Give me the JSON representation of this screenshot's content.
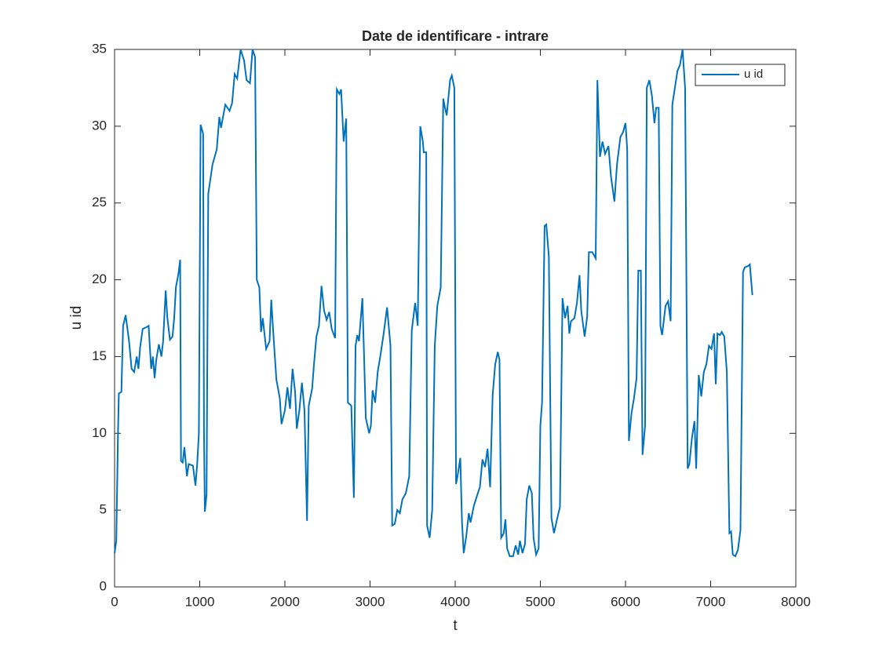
{
  "chart_data": {
    "type": "line",
    "title": "Date de identificare - intrare",
    "xlabel": "t",
    "ylabel": "u id",
    "xlim": [
      0,
      8000
    ],
    "ylim": [
      0,
      35
    ],
    "xticks": [
      0,
      1000,
      2000,
      3000,
      4000,
      5000,
      6000,
      7000,
      8000
    ],
    "yticks": [
      0,
      5,
      10,
      15,
      20,
      25,
      30,
      35
    ],
    "grid": false,
    "legend": "upper right",
    "x": [
      0,
      20,
      40,
      50,
      80,
      100,
      130,
      170,
      200,
      230,
      260,
      280,
      300,
      330,
      370,
      400,
      410,
      430,
      450,
      470,
      490,
      520,
      550,
      570,
      600,
      620,
      650,
      680,
      700,
      720,
      750,
      770,
      780,
      800,
      820,
      850,
      870,
      920,
      950,
      970,
      990,
      1010,
      1040,
      1050,
      1060,
      1080,
      1100,
      1150,
      1200,
      1230,
      1250,
      1300,
      1350,
      1380,
      1410,
      1440,
      1480,
      1520,
      1550,
      1590,
      1620,
      1650,
      1670,
      1700,
      1720,
      1740,
      1780,
      1820,
      1840,
      1870,
      1900,
      1940,
      1960,
      2000,
      2030,
      2060,
      2090,
      2120,
      2140,
      2170,
      2200,
      2230,
      2260,
      2280,
      2320,
      2340,
      2370,
      2400,
      2430,
      2460,
      2490,
      2520,
      2550,
      2590,
      2610,
      2640,
      2660,
      2690,
      2720,
      2740,
      2780,
      2810,
      2830,
      2850,
      2870,
      2910,
      2930,
      2950,
      2990,
      3010,
      3030,
      3060,
      3090,
      3120,
      3160,
      3200,
      3240,
      3260,
      3290,
      3320,
      3350,
      3380,
      3420,
      3460,
      3490,
      3530,
      3560,
      3590,
      3620,
      3630,
      3660,
      3670,
      3700,
      3730,
      3760,
      3790,
      3830,
      3860,
      3880,
      3900,
      3940,
      3960,
      3990,
      4010,
      4030,
      4060,
      4080,
      4100,
      4130,
      4160,
      4180,
      4220,
      4260,
      4290,
      4320,
      4350,
      4380,
      4410,
      4440,
      4470,
      4500,
      4520,
      4540,
      4570,
      4590,
      4610,
      4640,
      4680,
      4710,
      4740,
      4760,
      4790,
      4820,
      4840,
      4870,
      4900,
      4920,
      4950,
      4980,
      5000,
      5020,
      5050,
      5070,
      5100,
      5130,
      5160,
      5200,
      5230,
      5260,
      5290,
      5320,
      5340,
      5360,
      5400,
      5430,
      5460,
      5480,
      5520,
      5550,
      5570,
      5610,
      5650,
      5670,
      5700,
      5730,
      5760,
      5800,
      5830,
      5870,
      5900,
      5940,
      5970,
      6000,
      6020,
      6040,
      6070,
      6100,
      6130,
      6150,
      6180,
      6200,
      6230,
      6250,
      6280,
      6310,
      6340,
      6360,
      6390,
      6410,
      6430,
      6470,
      6500,
      6530,
      6550,
      6580,
      6610,
      6640,
      6670,
      6700,
      6730,
      6750,
      6780,
      6810,
      6830,
      6860,
      6890,
      6920,
      6950,
      6980,
      7010,
      7040,
      7060,
      7080,
      7110,
      7130,
      7160,
      7190,
      7220,
      7240,
      7260,
      7290,
      7320,
      7350,
      7380,
      7400,
      7440,
      7460,
      7490
    ],
    "series": [
      {
        "name": "u id",
        "color": "#0072bd",
        "values": [
          2.2,
          3,
          10,
          12.6,
          12.7,
          17,
          17.7,
          16,
          14.2,
          14,
          15,
          14.2,
          15.6,
          16.8,
          16.9,
          17,
          16,
          14.2,
          15,
          13.6,
          14.8,
          15.8,
          15,
          16,
          19.3,
          17.5,
          16.1,
          16.3,
          17.5,
          19.5,
          20.4,
          21.3,
          8.2,
          8.1,
          9.1,
          7.2,
          8,
          7.9,
          6.6,
          8,
          10,
          30.1,
          29.5,
          10,
          4.9,
          6,
          25.6,
          27.5,
          28.5,
          30.6,
          29.9,
          31.4,
          31,
          31.5,
          33.4,
          33.1,
          35,
          34.3,
          33,
          32.8,
          35,
          34.5,
          20,
          19.5,
          16.6,
          17.5,
          15.5,
          16,
          18.7,
          16,
          13.5,
          12.3,
          10.6,
          11.5,
          13,
          11.6,
          14.2,
          12.7,
          10.3,
          11.5,
          13.3,
          11.5,
          4.3,
          11.8,
          12.9,
          14.4,
          16.3,
          17,
          19.6,
          18,
          17.4,
          17.9,
          16.8,
          16.2,
          32.4,
          32.1,
          32.4,
          29,
          30.5,
          12,
          11.8,
          5.8,
          15.7,
          16.4,
          16,
          18.8,
          15,
          11,
          10,
          10.5,
          12.8,
          12,
          14,
          15,
          16.5,
          18.2,
          15.7,
          4,
          4.1,
          5,
          4.8,
          5.7,
          6.1,
          7.2,
          16.7,
          18.5,
          17,
          30,
          29,
          28.3,
          28.3,
          4,
          3.2,
          5,
          15.7,
          18.3,
          19.5,
          31.8,
          31.2,
          30.7,
          33,
          33.3,
          32.5,
          6.7,
          7.3,
          8.4,
          4.2,
          2.2,
          3.3,
          4.8,
          4.2,
          5.3,
          6,
          6.5,
          8.3,
          7.8,
          9,
          6.5,
          12.5,
          14.5,
          15.3,
          14.8,
          3.2,
          3.5,
          4.4,
          2.5,
          2,
          2,
          2.7,
          2.1,
          3,
          2.2,
          2.8,
          5.7,
          6.6,
          6.1,
          3.2,
          2.1,
          2.5,
          10.5,
          12,
          23.5,
          23.6,
          21.5,
          4.5,
          3.5,
          4.5,
          5.2,
          18.8,
          17.5,
          18.3,
          16.5,
          17.3,
          17.5,
          18.5,
          20.3,
          18,
          16.3,
          17.6,
          21.8,
          21.8,
          21.4,
          33,
          28,
          29,
          28.2,
          28.7,
          26.7,
          25.1,
          27.5,
          29.3,
          29.6,
          30.2,
          28.5,
          9.5,
          11.3,
          12.3,
          13.6,
          20.6,
          20.6,
          8.6,
          10.5,
          32.5,
          33,
          32,
          30.2,
          31.2,
          31.2,
          17,
          16.4,
          18.3,
          18.6,
          17.3,
          31.4,
          32.5,
          33.6,
          34,
          35,
          32.5,
          7.7,
          8,
          9.7,
          10.8,
          7.7,
          13.8,
          12.4,
          14,
          14.5,
          15.7,
          15.5,
          16.5,
          13.2,
          16.5,
          16.4,
          16.6,
          16.3,
          14,
          3.5,
          3.6,
          2.1,
          2,
          2.4,
          3.7,
          20.5,
          20.8,
          20.9,
          21,
          19
        ]
      }
    ]
  }
}
